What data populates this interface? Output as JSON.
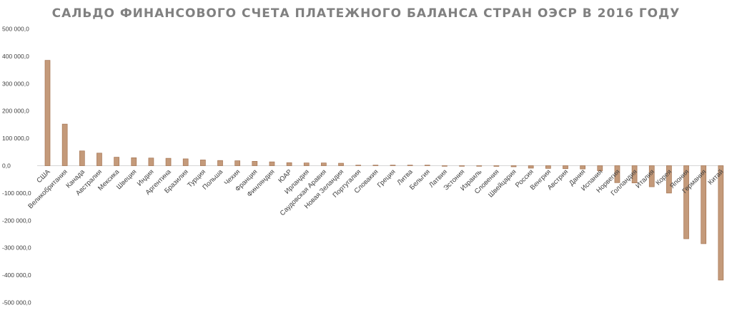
{
  "chart_data": {
    "type": "bar",
    "title": "САЛЬДО ФИНАНСОВОГО СЧЕТА ПЛАТЕЖНОГО БАЛАНСА СТРАН ОЭСР В 2016 ГОДУ",
    "xlabel": "",
    "ylabel": "",
    "ylim": [
      -500000,
      500000
    ],
    "yticks": [
      500000,
      400000,
      300000,
      200000,
      100000,
      0,
      -100000,
      -200000,
      -300000,
      -400000,
      -500000
    ],
    "ytick_labels": [
      "500 000,0",
      "400 000,0",
      "300 000,0",
      "200 000,0",
      "100 000,0",
      "0,0",
      "-100 000,0",
      "-200 000,0",
      "-300 000,0",
      "-400 000,0",
      "-500 000,0"
    ],
    "grid": false,
    "legend": "none",
    "categories": [
      "США",
      "Великобритания",
      "Канада",
      "Австралия",
      "Мексика",
      "Швеция",
      "Индия",
      "Аргентина",
      "Бразилия",
      "Турция",
      "Польша",
      "Чехия",
      "Франция",
      "Финляндия",
      "ЮАР",
      "Ирландия",
      "Саудовская Аравия",
      "Новая Зеландия",
      "Португалия",
      "Словакия",
      "Греция",
      "Литва",
      "Бельгия",
      "Латвия",
      "Эстония",
      "Израиль",
      "Словения",
      "Швейцария",
      "Россия",
      "Венгрия",
      "Австрия",
      "Дания",
      "Испания",
      "Норвегия",
      "Голландия",
      "Италия",
      "Корея",
      "Япония",
      "Германия",
      "Китай"
    ],
    "values": [
      385000,
      152000,
      54000,
      46000,
      31000,
      29000,
      28000,
      27000,
      25000,
      21000,
      19000,
      18000,
      16000,
      14000,
      11000,
      10000,
      10000,
      9000,
      2000,
      1500,
      1200,
      1000,
      800,
      -1000,
      -1500,
      -2000,
      -2500,
      -4000,
      -9000,
      -10000,
      -11000,
      -12000,
      -19000,
      -62000,
      -63000,
      -77000,
      -100000,
      -267000,
      -285000,
      -418000
    ],
    "colors": {
      "bar_fill": "#C49A7A",
      "bar_edge": "#A57452",
      "title": "#808080"
    }
  }
}
